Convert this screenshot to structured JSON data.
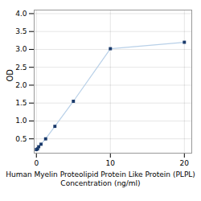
{
  "chart_data": {
    "type": "line",
    "xlabel": "Human Myelin Proteolipid Protein Like Protein (PLPL)\nConcentration (ng/ml)",
    "ylabel": "OD",
    "x": [
      0,
      0.156,
      0.313,
      0.625,
      1.25,
      2.5,
      5,
      10,
      20
    ],
    "series": [
      {
        "type": "line",
        "color": "#b8d0e8",
        "values": [
          0.2,
          0.22,
          0.28,
          0.35,
          0.5,
          0.85,
          1.55,
          3.02,
          3.2
        ]
      },
      {
        "type": "scatter",
        "color": "#1a3a6b",
        "marker": "square",
        "values": [
          0.2,
          0.22,
          0.28,
          0.35,
          0.5,
          0.85,
          1.55,
          3.02,
          3.2
        ]
      }
    ],
    "xlim": [
      -0.3,
      21
    ],
    "xticks": [
      0,
      10,
      20
    ],
    "ylim": [
      0.1,
      4.1
    ],
    "yticks": [
      0.5,
      {
        "value": 1.0,
        "label": "1.0"
      },
      1.5,
      {
        "value": 2.0,
        "label": "2.0"
      },
      2.5,
      {
        "value": 3.0,
        "label": "3.0"
      },
      3.5,
      {
        "value": 4.0,
        "label": "4.0"
      }
    ],
    "grid": true
  }
}
